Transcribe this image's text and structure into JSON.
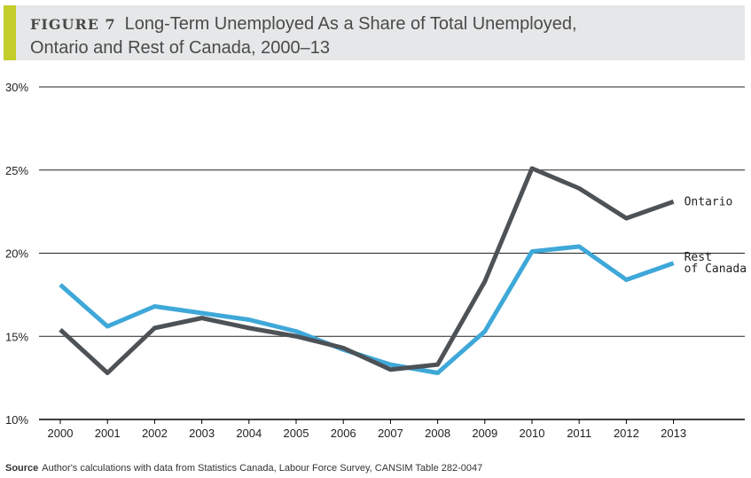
{
  "header": {
    "figure_label": "FIGURE 7",
    "title_line1": "Long-Term Unemployed As a Share of Total Unemployed,",
    "title_line2": "Ontario and Rest of Canada, 2000–13"
  },
  "source": {
    "label": "Source",
    "text": "Author's calculations with data from Statistics Canada, Labour Force Survey, CANSIM Table 282-0047"
  },
  "chart_data": {
    "type": "line",
    "title": "Long-Term Unemployed As a Share of Total Unemployed, Ontario and Rest of Canada, 2000–13",
    "categories": [
      "2000",
      "2001",
      "2002",
      "2003",
      "2004",
      "2005",
      "2006",
      "2007",
      "2008",
      "2009",
      "2010",
      "2011",
      "2012",
      "2013"
    ],
    "ylim": [
      10,
      30
    ],
    "yticks": [
      10,
      15,
      20,
      25,
      30
    ],
    "ytick_labels": [
      "10%",
      "15%",
      "20%",
      "25%",
      "30%"
    ],
    "grid": "horizontal",
    "series": [
      {
        "name": "Ontario",
        "color": "#4d5256",
        "values": [
          15.4,
          12.8,
          15.5,
          16.1,
          15.5,
          15.0,
          14.3,
          13.0,
          13.3,
          18.3,
          25.1,
          23.9,
          22.1,
          23.1
        ]
      },
      {
        "name": "Rest of Canada",
        "label_lines": [
          "Rest",
          "of Canada"
        ],
        "color": "#3ea8d8",
        "values": [
          18.1,
          15.6,
          16.8,
          16.4,
          16.0,
          15.3,
          14.2,
          13.3,
          12.8,
          15.3,
          20.1,
          20.4,
          18.4,
          19.4
        ]
      }
    ]
  }
}
